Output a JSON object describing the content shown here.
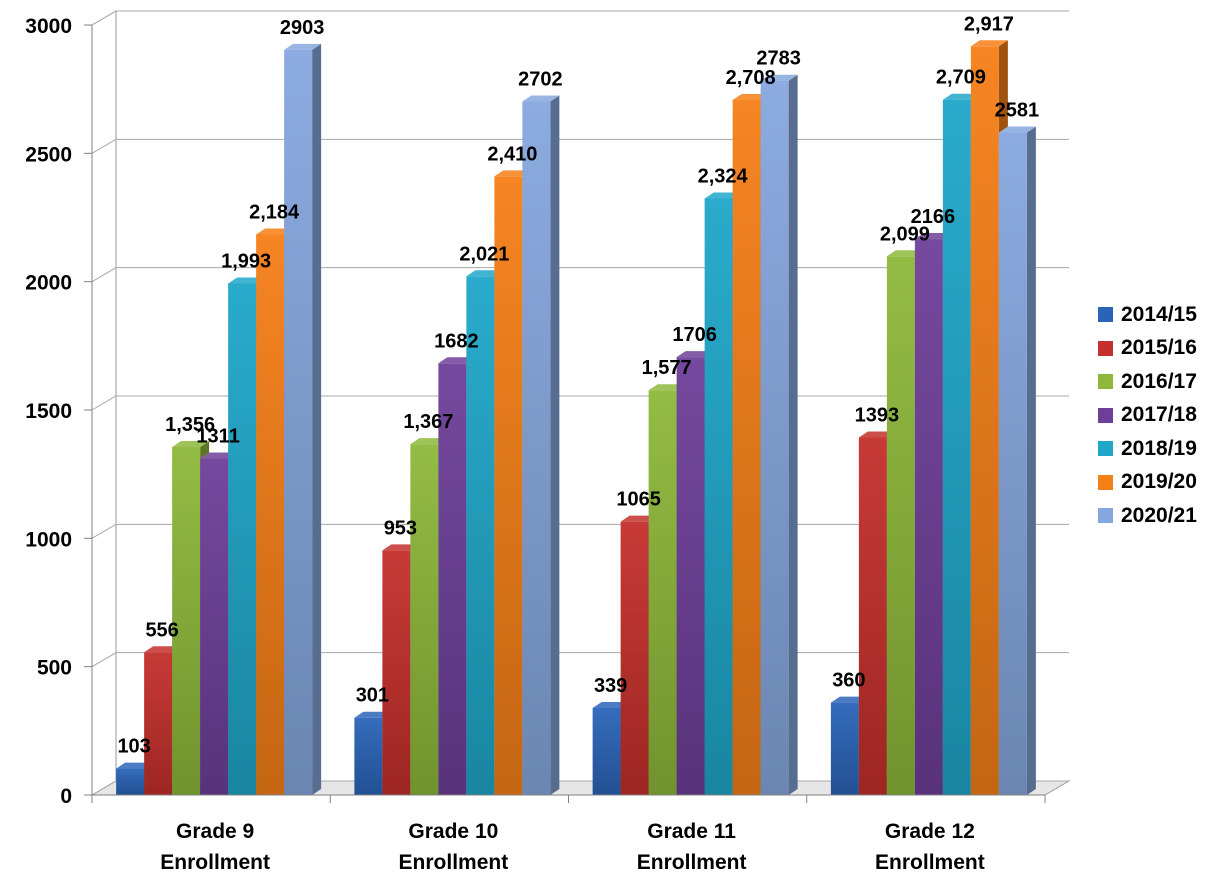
{
  "chart_data": {
    "type": "bar",
    "categories": [
      "Grade 9 Enrollment",
      "Grade 10 Enrollment",
      "Grade 11 Enrollment",
      "Grade 12 Enrollment"
    ],
    "category_lines": [
      [
        "Grade 9",
        "Enrollment"
      ],
      [
        "Grade 10",
        "Enrollment"
      ],
      [
        "Grade 11",
        "Enrollment"
      ],
      [
        "Grade 12",
        "Enrollment"
      ]
    ],
    "series": [
      {
        "name": "2014/15",
        "color": "#2A64B8",
        "values": [
          103,
          301,
          339,
          360
        ],
        "labels": [
          "103",
          "301",
          "339",
          "360"
        ]
      },
      {
        "name": "2015/16",
        "color": "#C4302B",
        "values": [
          556,
          953,
          1065,
          1393
        ],
        "labels": [
          "556",
          "953",
          "1065",
          "1393"
        ]
      },
      {
        "name": "2016/17",
        "color": "#8DB83A",
        "values": [
          1356,
          1367,
          1577,
          2099
        ],
        "labels": [
          "1,356",
          "1,367",
          "1,577",
          "2,099"
        ]
      },
      {
        "name": "2017/18",
        "color": "#6E3F99",
        "values": [
          1311,
          1682,
          1706,
          2166
        ],
        "labels": [
          "1311",
          "1682",
          "1706",
          "2166"
        ]
      },
      {
        "name": "2018/19",
        "color": "#1FA7C9",
        "values": [
          1993,
          2021,
          2324,
          2709
        ],
        "labels": [
          "1,993",
          "2,021",
          "2,324",
          "2,709"
        ]
      },
      {
        "name": "2019/20",
        "color": "#F57F17",
        "values": [
          2184,
          2410,
          2708,
          2917
        ],
        "labels": [
          "2,184",
          "2,410",
          "2,708",
          "2,917"
        ]
      },
      {
        "name": "2020/21",
        "color": "#86A7DE",
        "values": [
          2903,
          2702,
          2783,
          2581
        ],
        "labels": [
          "2903",
          "2702",
          "2783",
          "2581"
        ]
      }
    ],
    "y_ticks": [
      "0",
      "500",
      "1000",
      "1500",
      "2000",
      "2500",
      "3000"
    ],
    "ylim": [
      0,
      3000
    ],
    "grid": true,
    "legend_position": "right",
    "style": "3d-clustered-column"
  }
}
